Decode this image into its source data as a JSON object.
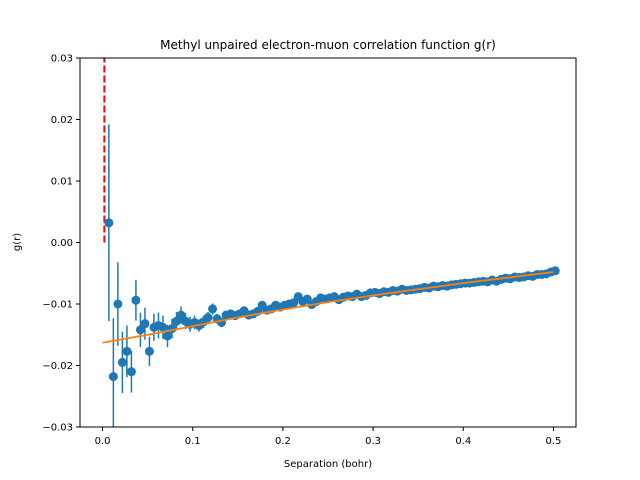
{
  "chart_data": {
    "type": "scatter",
    "title": "Methyl unpaired electron-muon correlation function g(r)",
    "xlabel": "Separation (bohr)",
    "ylabel": "g(r)",
    "xlim": [
      -0.025,
      0.525
    ],
    "ylim": [
      -0.03,
      0.03
    ],
    "xticks": [
      0.0,
      0.1,
      0.2,
      0.3,
      0.4,
      0.5
    ],
    "xtick_labels": [
      "0.0",
      "0.1",
      "0.2",
      "0.3",
      "0.4",
      "0.5"
    ],
    "yticks": [
      -0.03,
      -0.02,
      -0.01,
      0.0,
      0.01,
      0.02,
      0.03
    ],
    "ytick_labels": [
      "−0.03",
      "−0.02",
      "−0.01",
      "0.00",
      "0.01",
      "0.02",
      "0.03"
    ],
    "grid": false,
    "legend": "none",
    "colors": {
      "points": "#1f77b4",
      "fit": "#ff7f0e",
      "vline": "#ff0000",
      "axes": "#000000"
    },
    "reference_line": {
      "x": 0.002,
      "y_range": [
        0.0,
        0.03
      ],
      "style": "dashed"
    },
    "data_points": {
      "x": [
        0.007,
        0.012,
        0.017,
        0.022,
        0.027,
        0.032,
        0.037,
        0.042,
        0.047,
        0.052,
        0.057,
        0.062,
        0.067,
        0.072,
        0.077,
        0.082,
        0.087,
        0.092,
        0.097,
        0.102,
        0.107,
        0.112,
        0.117,
        0.122,
        0.127,
        0.132,
        0.137,
        0.142,
        0.147,
        0.152,
        0.157,
        0.162,
        0.167,
        0.172,
        0.177,
        0.182,
        0.187,
        0.192,
        0.197,
        0.202,
        0.207,
        0.212,
        0.217,
        0.222,
        0.227,
        0.232,
        0.237,
        0.242,
        0.247,
        0.252,
        0.257,
        0.262,
        0.267,
        0.272,
        0.277,
        0.282,
        0.287,
        0.292,
        0.297,
        0.302,
        0.307,
        0.312,
        0.317,
        0.322,
        0.327,
        0.332,
        0.337,
        0.342,
        0.347,
        0.352,
        0.357,
        0.362,
        0.367,
        0.372,
        0.377,
        0.382,
        0.387,
        0.392,
        0.397,
        0.402,
        0.407,
        0.412,
        0.417,
        0.422,
        0.427,
        0.432,
        0.437,
        0.442,
        0.447,
        0.452,
        0.457,
        0.462,
        0.467,
        0.472,
        0.477,
        0.482,
        0.487,
        0.492,
        0.497,
        0.502
      ],
      "y": [
        0.0032,
        -0.0218,
        -0.01,
        -0.0195,
        -0.0177,
        -0.021,
        -0.0094,
        -0.0142,
        -0.0132,
        -0.0177,
        -0.0138,
        -0.0135,
        -0.0138,
        -0.0152,
        -0.014,
        -0.0128,
        -0.0118,
        -0.0128,
        -0.0133,
        -0.013,
        -0.0135,
        -0.0129,
        -0.0122,
        -0.0108,
        -0.0124,
        -0.013,
        -0.0118,
        -0.0116,
        -0.0119,
        -0.0116,
        -0.0111,
        -0.0118,
        -0.0116,
        -0.0112,
        -0.0102,
        -0.011,
        -0.0108,
        -0.0102,
        -0.0105,
        -0.0102,
        -0.01,
        -0.0098,
        -0.0088,
        -0.0096,
        -0.0092,
        -0.0101,
        -0.0096,
        -0.009,
        -0.0092,
        -0.009,
        -0.0088,
        -0.0093,
        -0.0089,
        -0.0087,
        -0.0088,
        -0.0084,
        -0.0088,
        -0.0086,
        -0.0082,
        -0.0081,
        -0.0083,
        -0.008,
        -0.0081,
        -0.0078,
        -0.0079,
        -0.0076,
        -0.0078,
        -0.0077,
        -0.0076,
        -0.0075,
        -0.0073,
        -0.0074,
        -0.0071,
        -0.0072,
        -0.007,
        -0.0071,
        -0.0069,
        -0.0068,
        -0.0067,
        -0.0066,
        -0.0066,
        -0.0065,
        -0.0064,
        -0.0063,
        -0.0064,
        -0.0061,
        -0.0063,
        -0.006,
        -0.0058,
        -0.0059,
        -0.0056,
        -0.0057,
        -0.0056,
        -0.0054,
        -0.0055,
        -0.0052,
        -0.0052,
        -0.0051,
        -0.0048,
        -0.0046
      ],
      "yerr": [
        0.016,
        0.0095,
        0.0068,
        0.005,
        0.0042,
        0.0034,
        0.0033,
        0.0028,
        0.0026,
        0.0024,
        0.0022,
        0.0021,
        0.0019,
        0.0018,
        0.0016,
        0.0015,
        0.0014,
        0.0013,
        0.0012,
        0.0011,
        0.001,
        0.001,
        0.0009,
        0.0009,
        0.0008,
        0.0008,
        0.0007,
        0.0007,
        0.0007,
        0.0006,
        0.0006,
        0.0006,
        0.0005,
        0.0005,
        0.0005,
        0.0005,
        0.0005,
        0.0004,
        0.0004,
        0.0004,
        0.0004,
        0.0004,
        0.0004,
        0.0004,
        0.0003,
        0.0003,
        0.0003,
        0.0003,
        0.0003,
        0.0003,
        0.0003,
        0.0003,
        0.0003,
        0.0003,
        0.0003,
        0.0003,
        0.0003,
        0.0002,
        0.0002,
        0.0002,
        0.0002,
        0.0002,
        0.0002,
        0.0002,
        0.0002,
        0.0002,
        0.0002,
        0.0002,
        0.0002,
        0.0002,
        0.0002,
        0.0002,
        0.0002,
        0.0002,
        0.0002,
        0.0002,
        0.0002,
        0.0002,
        0.0002,
        0.0002,
        0.0002,
        0.0002,
        0.0002,
        0.0002,
        0.0002,
        0.0002,
        0.0002,
        0.0002,
        0.0002,
        0.0002,
        0.0002,
        0.0002,
        0.0002,
        0.0002,
        0.0002,
        0.0002,
        0.0002,
        0.0002,
        0.0002,
        0.0002
      ]
    },
    "fit_curve": {
      "x": [
        0.0,
        0.05,
        0.1,
        0.15,
        0.2,
        0.25,
        0.3,
        0.35,
        0.4,
        0.45,
        0.5
      ],
      "y": [
        -0.0163,
        -0.015,
        -0.0136,
        -0.0122,
        -0.0109,
        -0.0097,
        -0.0086,
        -0.0076,
        -0.0066,
        -0.0057,
        -0.0048
      ]
    }
  }
}
